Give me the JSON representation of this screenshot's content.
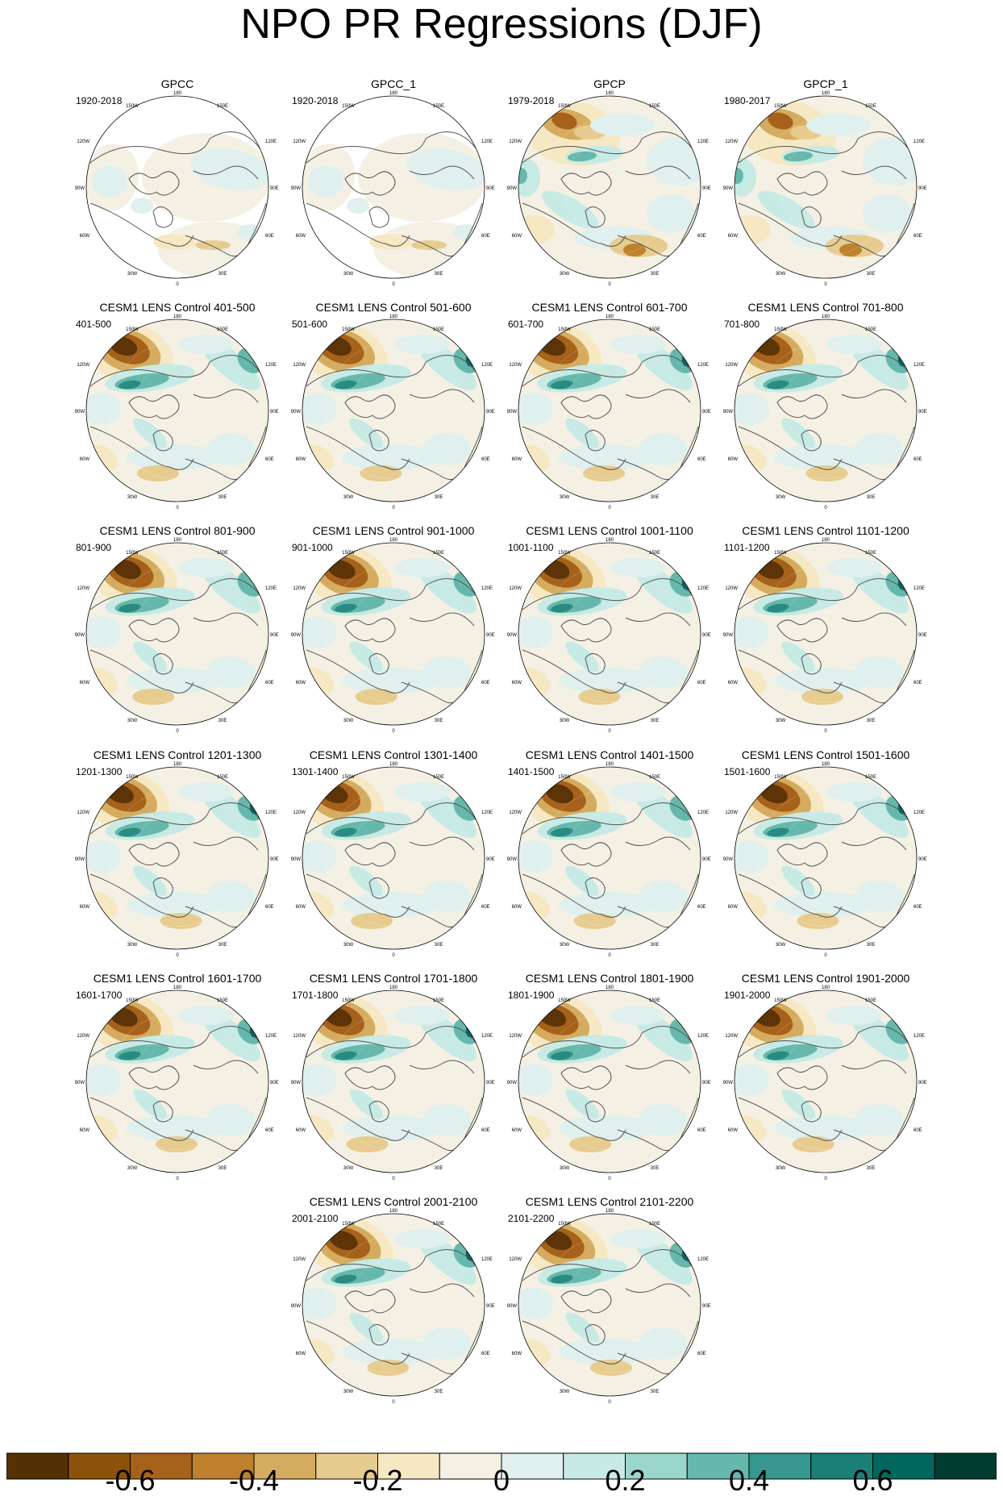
{
  "title": "NPO PR Regressions (DJF)",
  "panels": [
    {
      "title": "GPCC",
      "period": "1920-2018",
      "type": "obs-gpcc"
    },
    {
      "title": "GPCC_1",
      "period": "1920-2018",
      "type": "obs-gpcc"
    },
    {
      "title": "GPCP",
      "period": "1979-2018",
      "type": "obs-gpcp"
    },
    {
      "title": "GPCP_1",
      "period": "1980-2017",
      "type": "obs-gpcp"
    },
    {
      "title": "CESM1 LENS Control 401-500",
      "period": "401-500",
      "type": "model"
    },
    {
      "title": "CESM1 LENS Control 501-600",
      "period": "501-600",
      "type": "model"
    },
    {
      "title": "CESM1 LENS Control 601-700",
      "period": "601-700",
      "type": "model"
    },
    {
      "title": "CESM1 LENS Control 701-800",
      "period": "701-800",
      "type": "model"
    },
    {
      "title": "CESM1 LENS Control 801-900",
      "period": "801-900",
      "type": "model"
    },
    {
      "title": "CESM1 LENS Control 901-1000",
      "period": "901-1000",
      "type": "model"
    },
    {
      "title": "CESM1 LENS Control 1001-1100",
      "period": "1001-1100",
      "type": "model"
    },
    {
      "title": "CESM1 LENS Control 1101-1200",
      "period": "1101-1200",
      "type": "model"
    },
    {
      "title": "CESM1 LENS Control 1201-1300",
      "period": "1201-1300",
      "type": "model"
    },
    {
      "title": "CESM1 LENS Control 1301-1400",
      "period": "1301-1400",
      "type": "model"
    },
    {
      "title": "CESM1 LENS Control 1401-1500",
      "period": "1401-1500",
      "type": "model"
    },
    {
      "title": "CESM1 LENS Control 1501-1600",
      "period": "1501-1600",
      "type": "model"
    },
    {
      "title": "CESM1 LENS Control 1601-1700",
      "period": "1601-1700",
      "type": "model"
    },
    {
      "title": "CESM1 LENS Control 1701-1800",
      "period": "1701-1800",
      "type": "model"
    },
    {
      "title": "CESM1 LENS Control 1801-1900",
      "period": "1801-1900",
      "type": "model"
    },
    {
      "title": "CESM1 LENS Control 1901-2000",
      "period": "1901-2000",
      "type": "model"
    },
    {
      "title": "CESM1 LENS Control 2001-2100",
      "period": "2001-2100",
      "type": "model"
    },
    {
      "title": "CESM1 LENS Control 2101-2200",
      "period": "2101-2200",
      "type": "model"
    }
  ],
  "map_labels": {
    "top": "180",
    "upper_left": "150W",
    "upper_right": "150E",
    "mid_left_upper": "120W",
    "mid_right_upper": "120E",
    "left": "90W",
    "right": "90E",
    "mid_left_lower": "60W",
    "mid_right_lower": "60E",
    "lower_left": "30W",
    "lower_right": "30E",
    "bottom": "0"
  },
  "colorbar": {
    "colors": [
      "#543005",
      "#8c510a",
      "#a6611a",
      "#bf812d",
      "#d5ac5f",
      "#e7cc8f",
      "#f6e8c3",
      "#f5f0e4",
      "#e0f0ee",
      "#c7eae5",
      "#9ad6cc",
      "#66b8ac",
      "#35978f",
      "#1b7f76",
      "#01665e",
      "#003c30"
    ],
    "ticks": [
      "-0.6",
      "-0.4",
      "-0.2",
      "0",
      "0.2",
      "0.4",
      "0.6"
    ],
    "tick_values": [
      -0.6,
      -0.4,
      -0.2,
      0,
      0.2,
      0.4,
      0.6
    ],
    "min": -0.8,
    "max": 0.8
  }
}
